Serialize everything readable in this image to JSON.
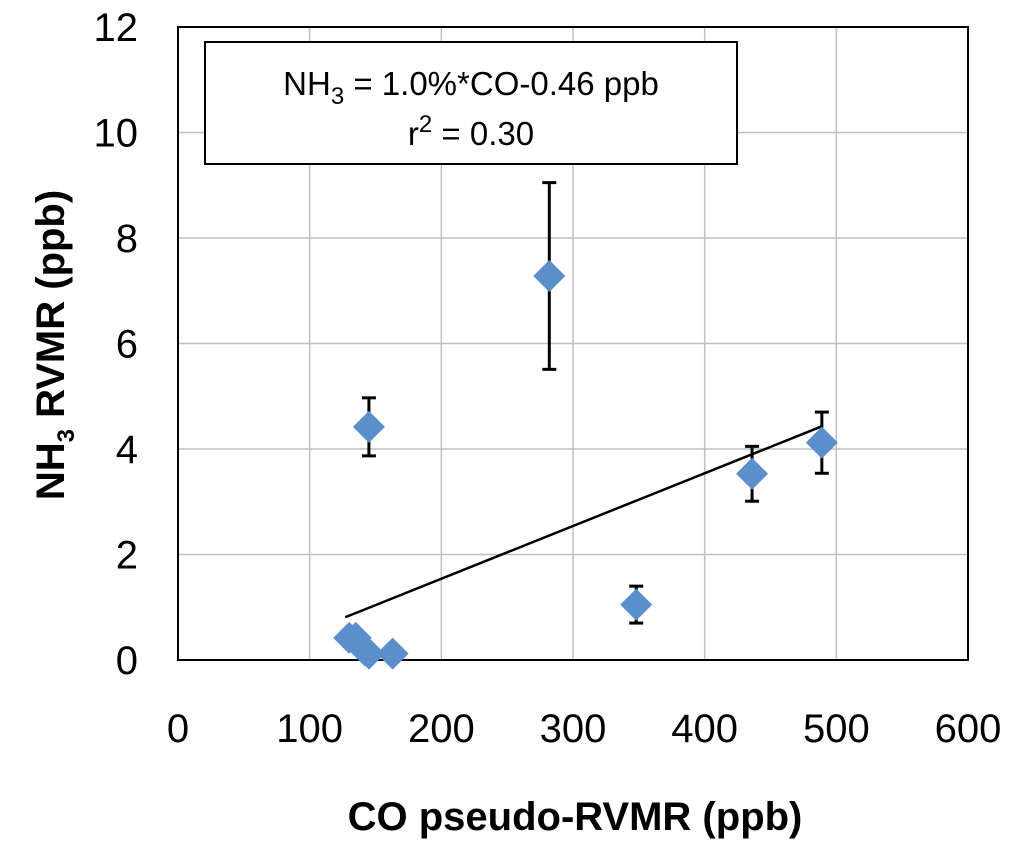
{
  "chart_data": {
    "type": "scatter",
    "title": "",
    "xlabel": "CO pseudo-RVMR (ppb)",
    "ylabel_main": "NH",
    "ylabel_sub": "3",
    "ylabel_rest": " RVMR (ppb)",
    "xlim": [
      0,
      600
    ],
    "ylim": [
      0,
      12
    ],
    "x_ticks": [
      0,
      100,
      200,
      300,
      400,
      500,
      600
    ],
    "y_ticks": [
      0,
      2,
      4,
      6,
      8,
      10,
      12
    ],
    "grid": true,
    "colors": {
      "marker": "#5b8fc9",
      "line": "#000000",
      "grid": "#bfbfbf"
    },
    "points": [
      {
        "x": 130,
        "y": 0.42,
        "err": null
      },
      {
        "x": 135,
        "y": 0.42,
        "err": null
      },
      {
        "x": 142,
        "y": 0.18,
        "err": null
      },
      {
        "x": 145,
        "y": 0.12,
        "err": null
      },
      {
        "x": 163,
        "y": 0.12,
        "err": null
      },
      {
        "x": 145,
        "y": 4.42,
        "err": 0.55
      },
      {
        "x": 282,
        "y": 7.28,
        "err": 1.77
      },
      {
        "x": 348,
        "y": 1.05,
        "err": 0.35
      },
      {
        "x": 436,
        "y": 3.53,
        "err": 0.52
      },
      {
        "x": 489,
        "y": 4.12,
        "err": 0.58
      }
    ],
    "trendline": {
      "slope": 0.01,
      "intercept": -0.46,
      "x_range": [
        127,
        489
      ]
    },
    "annotation": {
      "line1_prefix": "NH",
      "line1_sub": "3",
      "line1_rest": " = 1.0%*CO-0.46 ppb",
      "line2_prefix": "r",
      "line2_sup": "2",
      "line2_rest": " = 0.30"
    }
  }
}
